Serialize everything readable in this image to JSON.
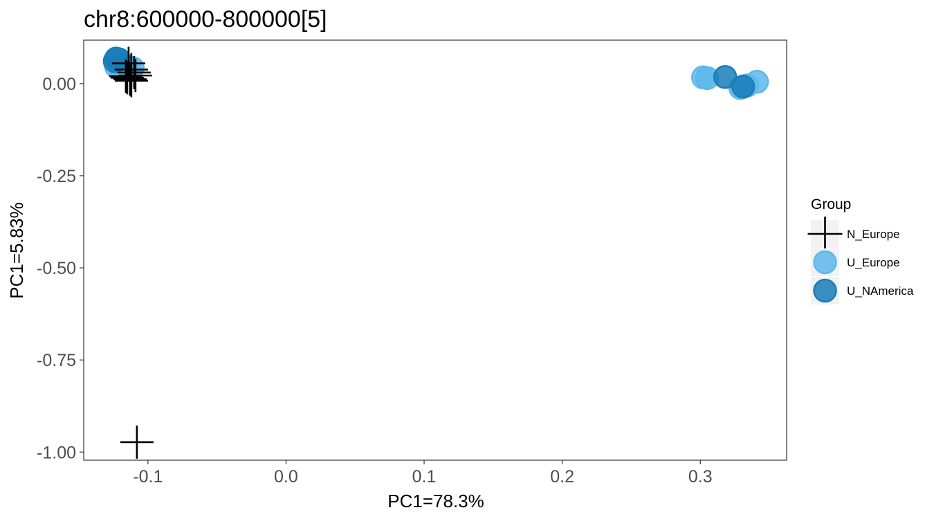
{
  "chart_data": {
    "type": "scatter",
    "title": "chr8:600000-800000[5]",
    "xlabel": "PC1=78.3%",
    "ylabel": "PC1=5.83%",
    "xlim": [
      -0.1465,
      0.3625
    ],
    "ylim": [
      -1.022,
      0.118
    ],
    "x_ticks": [
      -0.1,
      0.0,
      0.1,
      0.2,
      0.3
    ],
    "x_tick_labels": [
      "-0.1",
      "0.0",
      "0.1",
      "0.2",
      "0.3"
    ],
    "y_ticks": [
      0.0,
      -0.25,
      -0.5,
      -0.75,
      -1.0
    ],
    "y_tick_labels": [
      "0.00",
      "-0.25",
      "-0.50",
      "-0.75",
      "-1.00"
    ],
    "grid": false,
    "legend": {
      "title": "Group",
      "position": "right",
      "entries": [
        {
          "label": "N_Europe",
          "shape": "cross",
          "color": "#000000"
        },
        {
          "label": "U_Europe",
          "shape": "circle",
          "color": "#5DB8EA"
        },
        {
          "label": "U_NAmerica",
          "shape": "circle",
          "color": "#1A7DB8"
        }
      ]
    },
    "series": [
      {
        "name": "N_Europe",
        "shape": "cross",
        "color": "#000000",
        "points": [
          {
            "x": -0.108,
            "y": -0.973
          },
          {
            "x": -0.11,
            "y": 0.03
          },
          {
            "x": -0.109,
            "y": 0.022
          },
          {
            "x": -0.112,
            "y": 0.008
          },
          {
            "x": -0.113,
            "y": 0.012
          },
          {
            "x": -0.115,
            "y": 0.016
          },
          {
            "x": -0.116,
            "y": 0.02
          },
          {
            "x": -0.112,
            "y": 0.038
          },
          {
            "x": -0.114,
            "y": 0.055
          }
        ]
      },
      {
        "name": "U_Europe",
        "shape": "circle",
        "color": "#5DB8EA",
        "points": [
          {
            "x": -0.123,
            "y": 0.046
          },
          {
            "x": -0.12,
            "y": 0.043
          },
          {
            "x": -0.116,
            "y": 0.04
          },
          {
            "x": -0.113,
            "y": 0.038
          },
          {
            "x": -0.118,
            "y": 0.053
          },
          {
            "x": -0.121,
            "y": 0.06
          },
          {
            "x": -0.111,
            "y": 0.042
          },
          {
            "x": 0.302,
            "y": 0.017
          },
          {
            "x": 0.305,
            "y": 0.015
          },
          {
            "x": 0.329,
            "y": -0.012
          },
          {
            "x": 0.334,
            "y": -0.005
          },
          {
            "x": 0.341,
            "y": 0.005
          }
        ]
      },
      {
        "name": "U_NAmerica",
        "shape": "circle",
        "color": "#1A7DB8",
        "points": [
          {
            "x": -0.123,
            "y": 0.068
          },
          {
            "x": -0.124,
            "y": 0.061
          },
          {
            "x": -0.121,
            "y": 0.066
          },
          {
            "x": 0.318,
            "y": 0.018
          },
          {
            "x": 0.331,
            "y": -0.008
          }
        ]
      }
    ]
  }
}
